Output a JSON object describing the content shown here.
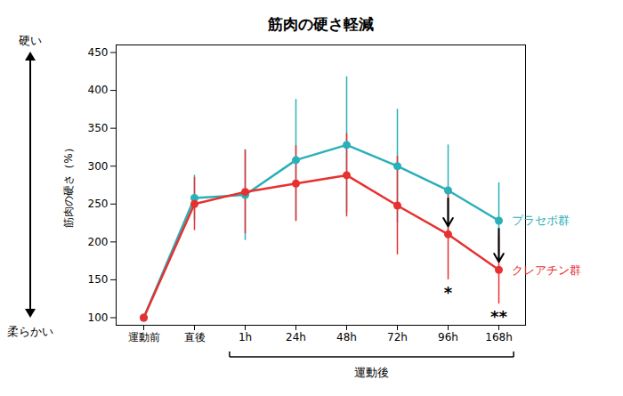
{
  "chart_data": {
    "type": "line",
    "title": "筋肉の硬さ軽減",
    "categories": [
      "運動前",
      "直後",
      "1h",
      "24h",
      "48h",
      "72h",
      "96h",
      "168h"
    ],
    "series": [
      {
        "name": "プラセボ群",
        "color": "#2ab0b8",
        "values": [
          100,
          258,
          262,
          308,
          328,
          300,
          268,
          228
        ],
        "errors": [
          0,
          30,
          60,
          80,
          90,
          75,
          60,
          50
        ]
      },
      {
        "name": "クレアチン群",
        "color": "#e83030",
        "values": [
          100,
          250,
          266,
          277,
          288,
          248,
          210,
          163
        ],
        "errors": [
          0,
          35,
          55,
          50,
          55,
          65,
          60,
          45
        ]
      }
    ],
    "ylabel": "筋肉の硬さ（%）",
    "xlabel": "運動後",
    "ylim": [
      90,
      460
    ],
    "yticks": [
      100,
      150,
      200,
      250,
      300,
      350,
      400,
      450
    ],
    "marker": "circle",
    "annotations": [
      {
        "text": "*",
        "x": "96h"
      },
      {
        "text": "**",
        "x": "168h"
      },
      {
        "text": "硬い"
      },
      {
        "text": "柔らかい"
      }
    ]
  }
}
